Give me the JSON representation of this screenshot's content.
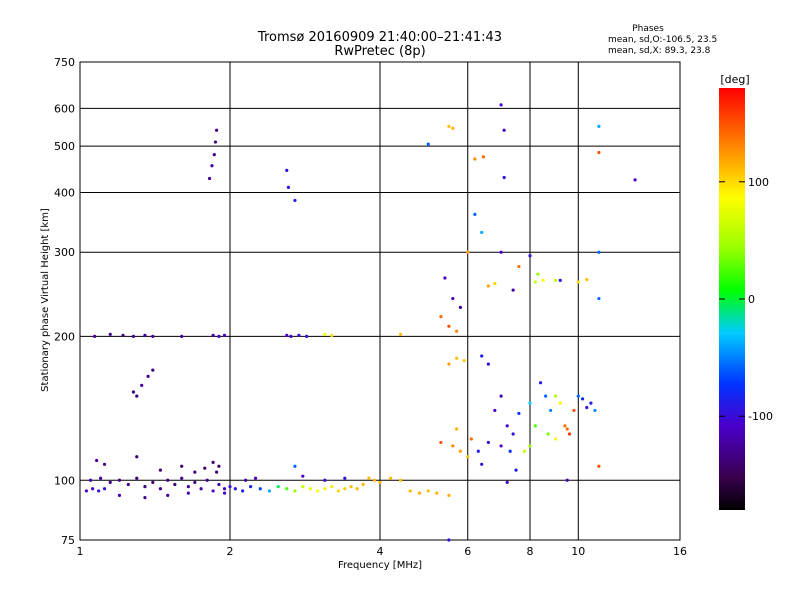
{
  "chart_data": {
    "type": "scatter",
    "title": "Tromsø 20160909 21:40:00–21:41:43",
    "subtitle": "RwPretec (8p)",
    "annotation": {
      "heading": "Phases",
      "line1": "mean, sd,O:-106.5, 23.5",
      "line2": "mean, sd,X:  89.3, 23.8"
    },
    "xlabel": "Frequency [MHz]",
    "ylabel": "Stationary phase Virtual Height [km]",
    "x_scale": "log",
    "y_scale": "log",
    "xlim": [
      1,
      16
    ],
    "ylim": [
      75,
      750
    ],
    "x_ticks": [
      1,
      2,
      4,
      6,
      8,
      10,
      16
    ],
    "x_tick_labels": [
      "1",
      "2",
      "4",
      "6",
      "8",
      "10",
      "16"
    ],
    "y_ticks": [
      75,
      100,
      200,
      300,
      400,
      500,
      600,
      750
    ],
    "y_tick_labels": [
      "75",
      "100",
      "200",
      "300",
      "400",
      "500",
      "600",
      "750"
    ],
    "grid": true,
    "colorbar": {
      "label": "[deg]",
      "range": [
        -180,
        180
      ],
      "ticks": [
        100,
        0,
        -100
      ],
      "tick_labels": [
        "100",
        "0",
        "-100"
      ]
    },
    "points": [
      [
        1.03,
        95,
        -110
      ],
      [
        1.06,
        96,
        -105
      ],
      [
        1.09,
        95,
        -100
      ],
      [
        1.12,
        96,
        -95
      ],
      [
        1.05,
        100,
        -120
      ],
      [
        1.1,
        101,
        -125
      ],
      [
        1.15,
        99,
        -130
      ],
      [
        1.2,
        100,
        -135
      ],
      [
        1.25,
        98,
        -130
      ],
      [
        1.3,
        101,
        -140
      ],
      [
        1.35,
        97,
        -135
      ],
      [
        1.4,
        99,
        -140
      ],
      [
        1.45,
        96,
        -130
      ],
      [
        1.5,
        100,
        -135
      ],
      [
        1.55,
        98,
        -140
      ],
      [
        1.6,
        101,
        -130
      ],
      [
        1.65,
        97,
        -125
      ],
      [
        1.7,
        99,
        -135
      ],
      [
        1.75,
        96,
        -120
      ],
      [
        1.8,
        100,
        -130
      ],
      [
        1.85,
        95,
        -110
      ],
      [
        1.9,
        98,
        -120
      ],
      [
        1.95,
        96,
        -115
      ],
      [
        2.0,
        97,
        -100
      ],
      [
        1.08,
        110,
        -125
      ],
      [
        1.12,
        108,
        -130
      ],
      [
        1.3,
        112,
        -140
      ],
      [
        1.45,
        105,
        -135
      ],
      [
        1.6,
        107,
        -140
      ],
      [
        1.7,
        104,
        -135
      ],
      [
        1.78,
        106,
        -145
      ],
      [
        1.85,
        109,
        -140
      ],
      [
        1.88,
        104,
        -135
      ],
      [
        1.9,
        107,
        -140
      ],
      [
        1.2,
        93,
        -120
      ],
      [
        1.35,
        92,
        -125
      ],
      [
        1.5,
        93,
        -130
      ],
      [
        1.65,
        94,
        -120
      ],
      [
        1.95,
        94,
        -105
      ],
      [
        2.05,
        96,
        -95
      ],
      [
        2.12,
        95,
        -90
      ],
      [
        2.2,
        97,
        -85
      ],
      [
        2.3,
        96,
        -70
      ],
      [
        2.4,
        95,
        -40
      ],
      [
        2.5,
        97,
        -10
      ],
      [
        2.6,
        96,
        20
      ],
      [
        2.7,
        95,
        40
      ],
      [
        2.8,
        97,
        60
      ],
      [
        2.9,
        96,
        75
      ],
      [
        3.0,
        95,
        85
      ],
      [
        3.1,
        96,
        90
      ],
      [
        3.2,
        97,
        95
      ],
      [
        3.3,
        95,
        100
      ],
      [
        3.4,
        96,
        105
      ],
      [
        3.5,
        97,
        110
      ],
      [
        3.6,
        96,
        110
      ],
      [
        3.7,
        98,
        112
      ],
      [
        3.8,
        101,
        112
      ],
      [
        3.9,
        100,
        115
      ],
      [
        4.0,
        99,
        115
      ],
      [
        4.2,
        101,
        110
      ],
      [
        4.4,
        100,
        110
      ],
      [
        4.6,
        95,
        112
      ],
      [
        4.8,
        94,
        115
      ],
      [
        5.0,
        95,
        110
      ],
      [
        5.2,
        94,
        112
      ],
      [
        5.5,
        93,
        115
      ],
      [
        2.15,
        100,
        -120
      ],
      [
        2.25,
        101,
        -115
      ],
      [
        2.8,
        102,
        -110
      ],
      [
        3.1,
        100,
        -105
      ],
      [
        3.4,
        101,
        -100
      ],
      [
        2.7,
        107,
        -60
      ],
      [
        1.07,
        200,
        -130
      ],
      [
        1.15,
        202,
        -130
      ],
      [
        1.22,
        201,
        -135
      ],
      [
        1.28,
        200,
        -130
      ],
      [
        1.35,
        201,
        -130
      ],
      [
        1.4,
        200,
        -125
      ],
      [
        1.6,
        200,
        -125
      ],
      [
        1.85,
        201,
        -120
      ],
      [
        1.9,
        200,
        -115
      ],
      [
        1.95,
        201,
        -110
      ],
      [
        2.6,
        201,
        -110
      ],
      [
        2.65,
        200,
        -105
      ],
      [
        2.75,
        201,
        -100
      ],
      [
        2.85,
        200,
        -100
      ],
      [
        3.1,
        202,
        80
      ],
      [
        3.2,
        201,
        95
      ],
      [
        4.4,
        202,
        110
      ],
      [
        1.28,
        153,
        -130
      ],
      [
        1.3,
        150,
        -135
      ],
      [
        1.33,
        158,
        -125
      ],
      [
        1.37,
        165,
        -130
      ],
      [
        1.4,
        170,
        -135
      ],
      [
        1.82,
        428,
        -130
      ],
      [
        1.84,
        455,
        -125
      ],
      [
        1.86,
        480,
        -130
      ],
      [
        1.87,
        510,
        -135
      ],
      [
        1.88,
        540,
        -130
      ],
      [
        2.6,
        445,
        -100
      ],
      [
        2.62,
        410,
        -95
      ],
      [
        2.7,
        385,
        -90
      ],
      [
        5.0,
        505,
        -60
      ],
      [
        5.5,
        550,
        110
      ],
      [
        5.6,
        545,
        115
      ],
      [
        6.2,
        470,
        130
      ],
      [
        6.45,
        475,
        140
      ],
      [
        7.0,
        610,
        -110
      ],
      [
        7.1,
        540,
        -115
      ],
      [
        7.1,
        430,
        -100
      ],
      [
        11.0,
        550,
        -40
      ],
      [
        11.0,
        485,
        150
      ],
      [
        13.0,
        425,
        -110
      ],
      [
        6.2,
        360,
        -60
      ],
      [
        6.4,
        330,
        -40
      ],
      [
        7.0,
        300,
        -110
      ],
      [
        8.0,
        295,
        -100
      ],
      [
        11.0,
        300,
        -60
      ],
      [
        5.4,
        265,
        -110
      ],
      [
        5.6,
        240,
        -120
      ],
      [
        5.8,
        230,
        -130
      ],
      [
        6.6,
        255,
        120
      ],
      [
        6.8,
        258,
        100
      ],
      [
        7.4,
        250,
        -120
      ],
      [
        8.2,
        260,
        60
      ],
      [
        8.5,
        262,
        80
      ],
      [
        9.0,
        262,
        60
      ],
      [
        9.2,
        262,
        -100
      ],
      [
        10.0,
        260,
        100
      ],
      [
        10.4,
        263,
        110
      ],
      [
        11.0,
        240,
        -60
      ],
      [
        5.3,
        220,
        140
      ],
      [
        5.5,
        210,
        150
      ],
      [
        5.7,
        205,
        130
      ],
      [
        8.3,
        270,
        40
      ],
      [
        7.6,
        280,
        140
      ],
      [
        6.0,
        300,
        120
      ],
      [
        5.5,
        175,
        120
      ],
      [
        5.7,
        180,
        110
      ],
      [
        5.9,
        178,
        105
      ],
      [
        6.4,
        182,
        -90
      ],
      [
        6.6,
        175,
        -100
      ],
      [
        6.8,
        140,
        -110
      ],
      [
        7.0,
        150,
        -120
      ],
      [
        7.2,
        130,
        -110
      ],
      [
        7.4,
        125,
        -100
      ],
      [
        7.6,
        138,
        -80
      ],
      [
        8.0,
        145,
        -30
      ],
      [
        8.2,
        130,
        20
      ],
      [
        8.4,
        160,
        -90
      ],
      [
        8.6,
        150,
        -60
      ],
      [
        8.8,
        140,
        -50
      ],
      [
        9.0,
        150,
        50
      ],
      [
        9.2,
        145,
        90
      ],
      [
        9.4,
        130,
        140
      ],
      [
        9.6,
        125,
        160
      ],
      [
        9.8,
        140,
        150
      ],
      [
        10.0,
        150,
        -60
      ],
      [
        10.2,
        148,
        -80
      ],
      [
        10.4,
        142,
        -100
      ],
      [
        10.6,
        145,
        -90
      ],
      [
        10.8,
        140,
        -50
      ],
      [
        5.3,
        120,
        150
      ],
      [
        5.6,
        118,
        130
      ],
      [
        5.8,
        115,
        120
      ],
      [
        6.0,
        112,
        110
      ],
      [
        6.3,
        115,
        -90
      ],
      [
        6.6,
        120,
        -100
      ],
      [
        7.0,
        118,
        -110
      ],
      [
        7.3,
        115,
        -80
      ],
      [
        7.8,
        115,
        60
      ],
      [
        8.0,
        118,
        40
      ],
      [
        9.0,
        122,
        80
      ],
      [
        9.5,
        128,
        140
      ],
      [
        5.7,
        128,
        115
      ],
      [
        6.1,
        122,
        140
      ],
      [
        8.7,
        125,
        30
      ],
      [
        6.4,
        108,
        -100
      ],
      [
        7.5,
        105,
        -90
      ],
      [
        11.0,
        107,
        150
      ],
      [
        9.5,
        100,
        -120
      ],
      [
        5.5,
        75,
        -100
      ],
      [
        7.2,
        99,
        -105
      ]
    ]
  }
}
